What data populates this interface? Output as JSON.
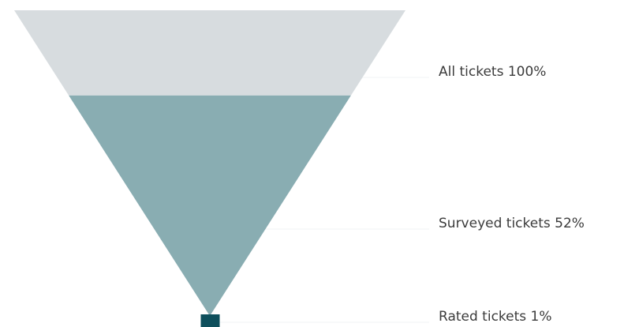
{
  "chart_data": {
    "type": "funnel",
    "categories": [
      "All tickets",
      "Surveyed tickets",
      "Rated tickets"
    ],
    "values": [
      100,
      52,
      1
    ],
    "unit": "%",
    "labels": [
      "All tickets 100%",
      "Surveyed tickets 52%",
      "Rated tickets 1%"
    ],
    "colors": [
      "#d7dcdf",
      "#89adb2",
      "#0e4f5c"
    ],
    "connector_color": "#f1f3f4"
  }
}
